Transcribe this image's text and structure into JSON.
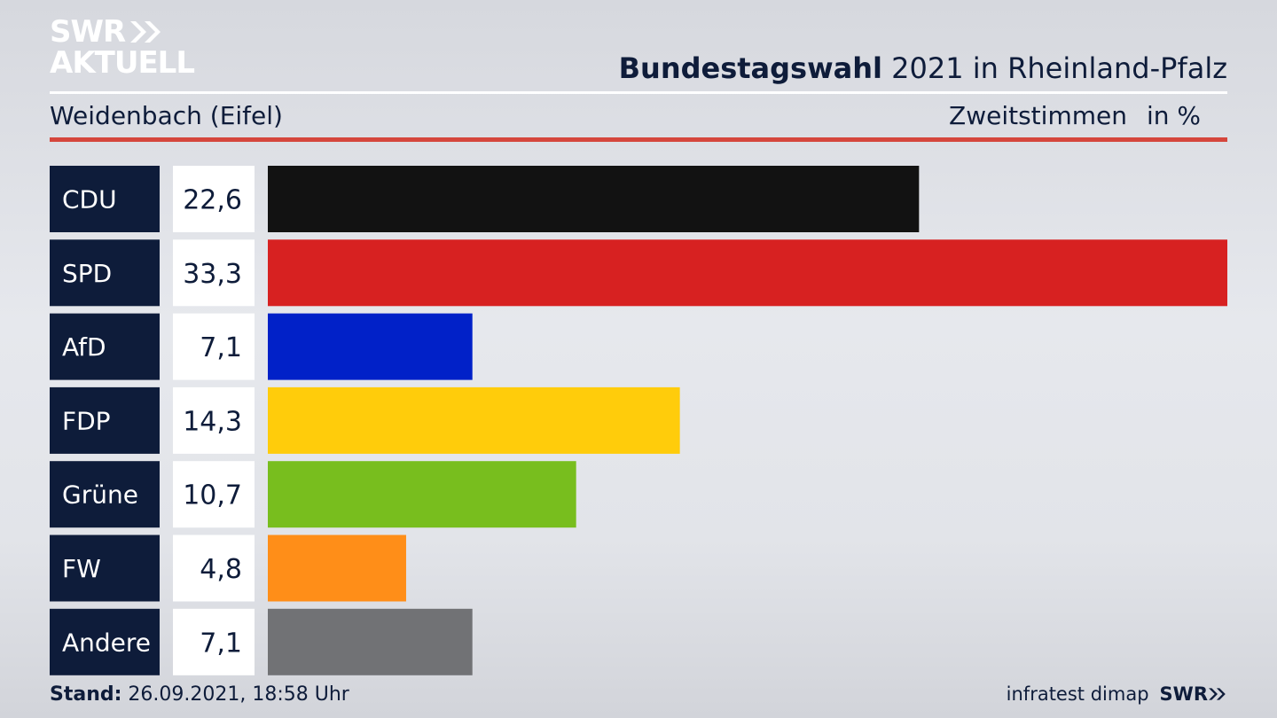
{
  "brand": {
    "logo_line1": "SWR",
    "logo_line2": "AKTUELL",
    "footer_logo": "SWR",
    "source": "infratest dimap"
  },
  "header": {
    "title_bold": "Bundestagswahl",
    "title_rest": "2021 in Rheinland-Pfalz",
    "location": "Weidenbach (Eifel)",
    "measure": "Zweitstimmen",
    "unit": "in %"
  },
  "footer": {
    "stand_label": "Stand:",
    "stand_value": "26.09.2021, 18:58 Uhr"
  },
  "chart_data": {
    "type": "bar",
    "orientation": "horizontal",
    "categories": [
      "CDU",
      "SPD",
      "AfD",
      "FDP",
      "Grüne",
      "FW",
      "Andere"
    ],
    "values": [
      22.6,
      33.3,
      7.1,
      14.3,
      10.7,
      4.8,
      7.1
    ],
    "value_labels": [
      "22,6",
      "33,3",
      "7,1",
      "14,3",
      "10,7",
      "4,8",
      "7,1"
    ],
    "colors": [
      "#121212",
      "#d72121",
      "#0121c8",
      "#ffcc0b",
      "#78be1e",
      "#ff8e18",
      "#717275"
    ],
    "xlim": [
      0,
      33.3
    ],
    "grid": false,
    "legend": "none"
  },
  "colors": {
    "label_box": "#0e1c3a",
    "value_box": "#ffffff",
    "accent_rule": "#d5463c"
  }
}
